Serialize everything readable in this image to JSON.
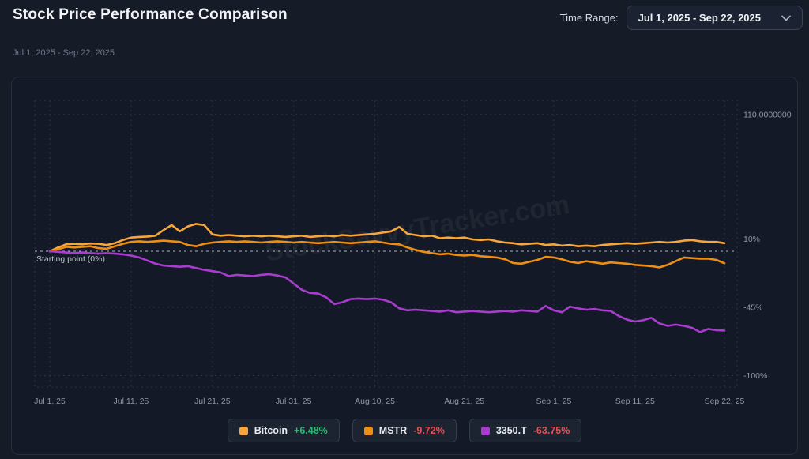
{
  "header": {
    "title": "Stock Price Performance Comparison",
    "time_range_label": "Time Range:",
    "time_range_value": "Jul 1, 2025 - Sep 22, 2025"
  },
  "subtitle": "Jul 1, 2025 - Sep 22, 2025",
  "watermark": "StockSavvyTracker.com",
  "colors": {
    "green": "#2eb872",
    "red": "#e35252",
    "grid": "#2b3346",
    "axis_text": "#8d96a8",
    "baseline": "#c9d0da"
  },
  "chart_data": {
    "type": "line",
    "title": "",
    "xlabel": "",
    "ylabel": "",
    "ylim": [
      -109,
      121
    ],
    "x_range_days": 83,
    "grid": true,
    "legend_position": "bottom",
    "baseline": {
      "label": "Starting point (0%)",
      "value": 0
    },
    "x_axis": {
      "ticks": [
        {
          "label": "Jul 1, 25",
          "day": 0
        },
        {
          "label": "Jul 11, 25",
          "day": 10
        },
        {
          "label": "Jul 21, 25",
          "day": 20
        },
        {
          "label": "Jul 31, 25",
          "day": 30
        },
        {
          "label": "Aug 10, 25",
          "day": 40
        },
        {
          "label": "Aug 21, 25",
          "day": 51
        },
        {
          "label": "Sep 1, 25",
          "day": 62
        },
        {
          "label": "Sep 11, 25",
          "day": 72
        },
        {
          "label": "Sep 22, 25",
          "day": 83
        }
      ]
    },
    "y_axis": {
      "ticks": [
        {
          "label": "110.0000000",
          "value": 110
        },
        {
          "label": "10%",
          "value": 10
        },
        {
          "label": "-45%",
          "value": -45
        },
        {
          "label": "-100%",
          "value": -100
        }
      ]
    },
    "series": [
      {
        "name": "Bitcoin",
        "color": "#f8a63c",
        "change": "+6.48%",
        "change_color": "#2eb872",
        "points": [
          [
            0,
            0
          ],
          [
            1,
            3
          ],
          [
            2,
            5.5
          ],
          [
            3,
            6
          ],
          [
            4,
            5.5
          ],
          [
            5,
            6.2
          ],
          [
            6,
            6
          ],
          [
            7,
            5
          ],
          [
            8,
            6.5
          ],
          [
            9,
            9
          ],
          [
            10,
            11
          ],
          [
            11,
            11.5
          ],
          [
            12,
            11.8
          ],
          [
            13,
            12.5
          ],
          [
            14,
            17
          ],
          [
            15,
            21
          ],
          [
            16,
            16
          ],
          [
            17,
            20
          ],
          [
            18,
            22
          ],
          [
            19,
            21
          ],
          [
            20,
            13.5
          ],
          [
            21,
            12.5
          ],
          [
            22,
            13
          ],
          [
            23,
            12.5
          ],
          [
            24,
            12
          ],
          [
            25,
            12.5
          ],
          [
            26,
            12
          ],
          [
            27,
            12.5
          ],
          [
            28,
            12
          ],
          [
            29,
            11.5
          ],
          [
            30,
            12
          ],
          [
            31,
            12.5
          ],
          [
            32,
            11.5
          ],
          [
            33,
            12
          ],
          [
            34,
            12.5
          ],
          [
            35,
            12
          ],
          [
            36,
            13
          ],
          [
            37,
            12.5
          ],
          [
            38,
            13
          ],
          [
            39,
            13.5
          ],
          [
            40,
            14
          ],
          [
            41,
            15
          ],
          [
            42,
            16
          ],
          [
            43,
            19.5
          ],
          [
            44,
            14
          ],
          [
            45,
            13
          ],
          [
            46,
            12
          ],
          [
            47,
            12.5
          ],
          [
            48,
            10.5
          ],
          [
            49,
            11
          ],
          [
            50,
            10.5
          ],
          [
            51,
            11
          ],
          [
            52,
            9.5
          ],
          [
            53,
            9
          ],
          [
            54,
            9.5
          ],
          [
            55,
            8
          ],
          [
            56,
            7
          ],
          [
            57,
            6.5
          ],
          [
            58,
            5.5
          ],
          [
            59,
            6
          ],
          [
            60,
            6.5
          ],
          [
            61,
            5
          ],
          [
            62,
            5.5
          ],
          [
            63,
            4.5
          ],
          [
            64,
            5
          ],
          [
            65,
            4
          ],
          [
            66,
            4.5
          ],
          [
            67,
            4
          ],
          [
            68,
            5
          ],
          [
            69,
            5.5
          ],
          [
            70,
            6
          ],
          [
            71,
            6.5
          ],
          [
            72,
            6
          ],
          [
            73,
            6.5
          ],
          [
            74,
            7
          ],
          [
            75,
            7.5
          ],
          [
            76,
            7
          ],
          [
            77,
            7.5
          ],
          [
            78,
            8.5
          ],
          [
            79,
            9
          ],
          [
            80,
            8
          ],
          [
            81,
            7.5
          ],
          [
            82,
            7.5
          ],
          [
            83,
            6.48
          ]
        ]
      },
      {
        "name": "MSTR",
        "color": "#ee8f13",
        "change": "-9.72%",
        "change_color": "#e35252",
        "points": [
          [
            0,
            0
          ],
          [
            1,
            1.5
          ],
          [
            2,
            3.5
          ],
          [
            3,
            3
          ],
          [
            4,
            3.5
          ],
          [
            5,
            4
          ],
          [
            6,
            2.5
          ],
          [
            7,
            2
          ],
          [
            8,
            4
          ],
          [
            9,
            6
          ],
          [
            10,
            7.5
          ],
          [
            11,
            8
          ],
          [
            12,
            7.5
          ],
          [
            13,
            8
          ],
          [
            14,
            8.5
          ],
          [
            15,
            8
          ],
          [
            16,
            7.5
          ],
          [
            17,
            5
          ],
          [
            18,
            4
          ],
          [
            19,
            6
          ],
          [
            20,
            7
          ],
          [
            21,
            7.5
          ],
          [
            22,
            8
          ],
          [
            23,
            7.5
          ],
          [
            24,
            8
          ],
          [
            25,
            7.5
          ],
          [
            26,
            7
          ],
          [
            27,
            7.5
          ],
          [
            28,
            8
          ],
          [
            29,
            7.5
          ],
          [
            30,
            7
          ],
          [
            31,
            7.5
          ],
          [
            32,
            7
          ],
          [
            33,
            6.5
          ],
          [
            34,
            7
          ],
          [
            35,
            7.5
          ],
          [
            36,
            7
          ],
          [
            37,
            6.5
          ],
          [
            38,
            7
          ],
          [
            39,
            7.5
          ],
          [
            40,
            8
          ],
          [
            41,
            7
          ],
          [
            42,
            6
          ],
          [
            43,
            5.5
          ],
          [
            44,
            3
          ],
          [
            45,
            1
          ],
          [
            46,
            -0.5
          ],
          [
            47,
            -1.5
          ],
          [
            48,
            -2.5
          ],
          [
            49,
            -2
          ],
          [
            50,
            -3
          ],
          [
            51,
            -3.5
          ],
          [
            52,
            -3
          ],
          [
            53,
            -4
          ],
          [
            54,
            -4.5
          ],
          [
            55,
            -5
          ],
          [
            56,
            -6.5
          ],
          [
            57,
            -9.5
          ],
          [
            58,
            -10
          ],
          [
            59,
            -8.5
          ],
          [
            60,
            -7
          ],
          [
            61,
            -4.5
          ],
          [
            62,
            -5
          ],
          [
            63,
            -6.5
          ],
          [
            64,
            -8.5
          ],
          [
            65,
            -9.5
          ],
          [
            66,
            -8
          ],
          [
            67,
            -9
          ],
          [
            68,
            -10
          ],
          [
            69,
            -9
          ],
          [
            70,
            -9.5
          ],
          [
            71,
            -10
          ],
          [
            72,
            -11
          ],
          [
            73,
            -11.5
          ],
          [
            74,
            -12
          ],
          [
            75,
            -13
          ],
          [
            76,
            -11
          ],
          [
            77,
            -8
          ],
          [
            78,
            -5
          ],
          [
            79,
            -5.5
          ],
          [
            80,
            -6
          ],
          [
            81,
            -6
          ],
          [
            82,
            -7
          ],
          [
            83,
            -9.72
          ]
        ]
      },
      {
        "name": "3350.T",
        "color": "#a93ccf",
        "change": "-63.75%",
        "change_color": "#e35252",
        "points": [
          [
            0,
            0
          ],
          [
            1,
            -0.5
          ],
          [
            2,
            -1
          ],
          [
            3,
            -1.5
          ],
          [
            4,
            -1
          ],
          [
            5,
            -1.5
          ],
          [
            6,
            -2
          ],
          [
            7,
            -1.5
          ],
          [
            8,
            -2
          ],
          [
            9,
            -2.5
          ],
          [
            10,
            -3.5
          ],
          [
            11,
            -5
          ],
          [
            12,
            -7.5
          ],
          [
            13,
            -10
          ],
          [
            14,
            -11.5
          ],
          [
            15,
            -12
          ],
          [
            16,
            -12.5
          ],
          [
            17,
            -12
          ],
          [
            18,
            -13.5
          ],
          [
            19,
            -15
          ],
          [
            20,
            -16
          ],
          [
            21,
            -17
          ],
          [
            22,
            -20
          ],
          [
            23,
            -19
          ],
          [
            24,
            -19.5
          ],
          [
            25,
            -20
          ],
          [
            26,
            -19
          ],
          [
            27,
            -18.5
          ],
          [
            28,
            -19.5
          ],
          [
            29,
            -21
          ],
          [
            30,
            -26
          ],
          [
            31,
            -31
          ],
          [
            32,
            -33.5
          ],
          [
            33,
            -34
          ],
          [
            34,
            -37
          ],
          [
            35,
            -42.5
          ],
          [
            36,
            -41
          ],
          [
            37,
            -38.5
          ],
          [
            38,
            -38
          ],
          [
            39,
            -38.5
          ],
          [
            40,
            -38
          ],
          [
            41,
            -39
          ],
          [
            42,
            -41
          ],
          [
            43,
            -46
          ],
          [
            44,
            -47.5
          ],
          [
            45,
            -47
          ],
          [
            46,
            -47.5
          ],
          [
            47,
            -48
          ],
          [
            48,
            -48.5
          ],
          [
            49,
            -47.5
          ],
          [
            50,
            -49
          ],
          [
            51,
            -48.5
          ],
          [
            52,
            -48
          ],
          [
            53,
            -48.5
          ],
          [
            54,
            -49
          ],
          [
            55,
            -48.5
          ],
          [
            56,
            -48
          ],
          [
            57,
            -48.5
          ],
          [
            58,
            -47.5
          ],
          [
            59,
            -48
          ],
          [
            60,
            -48.5
          ],
          [
            61,
            -44
          ],
          [
            62,
            -47.5
          ],
          [
            63,
            -49
          ],
          [
            64,
            -44.5
          ],
          [
            65,
            -46
          ],
          [
            66,
            -47
          ],
          [
            67,
            -46.5
          ],
          [
            68,
            -47.5
          ],
          [
            69,
            -48
          ],
          [
            70,
            -52
          ],
          [
            71,
            -55
          ],
          [
            72,
            -56.5
          ],
          [
            73,
            -55.5
          ],
          [
            74,
            -53.5
          ],
          [
            75,
            -58
          ],
          [
            76,
            -60
          ],
          [
            77,
            -59
          ],
          [
            78,
            -60
          ],
          [
            79,
            -61.5
          ],
          [
            80,
            -65
          ],
          [
            81,
            -62.5
          ],
          [
            82,
            -63.5
          ],
          [
            83,
            -63.75
          ]
        ]
      }
    ]
  }
}
